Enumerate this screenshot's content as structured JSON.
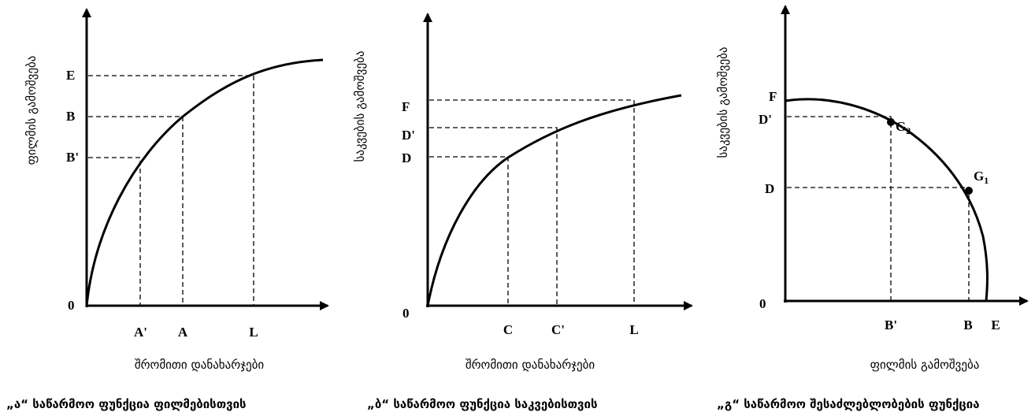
{
  "panels": [
    {
      "origin": "0",
      "y_axis_label": "ფილმის გამოშვება",
      "x_axis_label": "შრომითი დანახარჯები",
      "caption": "„ა“ საწარმოო ფუნქცია ფილმებისთვის",
      "y_ticks": [
        "E",
        "B",
        "B'"
      ],
      "x_ticks": [
        "A'",
        "A",
        "L"
      ]
    },
    {
      "origin": "0",
      "y_axis_label": "საკვების გამოშვება",
      "x_axis_label": "შრომითი დანახარჯები",
      "caption": "„ბ“ საწარმოო ფუნქცია საკვებისთვის",
      "y_ticks": [
        "F",
        "D'",
        "D"
      ],
      "x_ticks": [
        "C",
        "C'",
        "L"
      ]
    },
    {
      "origin": "0",
      "y_axis_label": "საკვების გამოშვება",
      "x_axis_label": "ფილმის გამოშვება",
      "caption": "„გ“ საწარმოო შესაძლებლობების ფუნქცია",
      "y_ticks": [
        "F",
        "D'",
        "D"
      ],
      "x_ticks": [
        "B'",
        "B",
        "E"
      ],
      "points": [
        "G2",
        "G1"
      ]
    }
  ]
}
